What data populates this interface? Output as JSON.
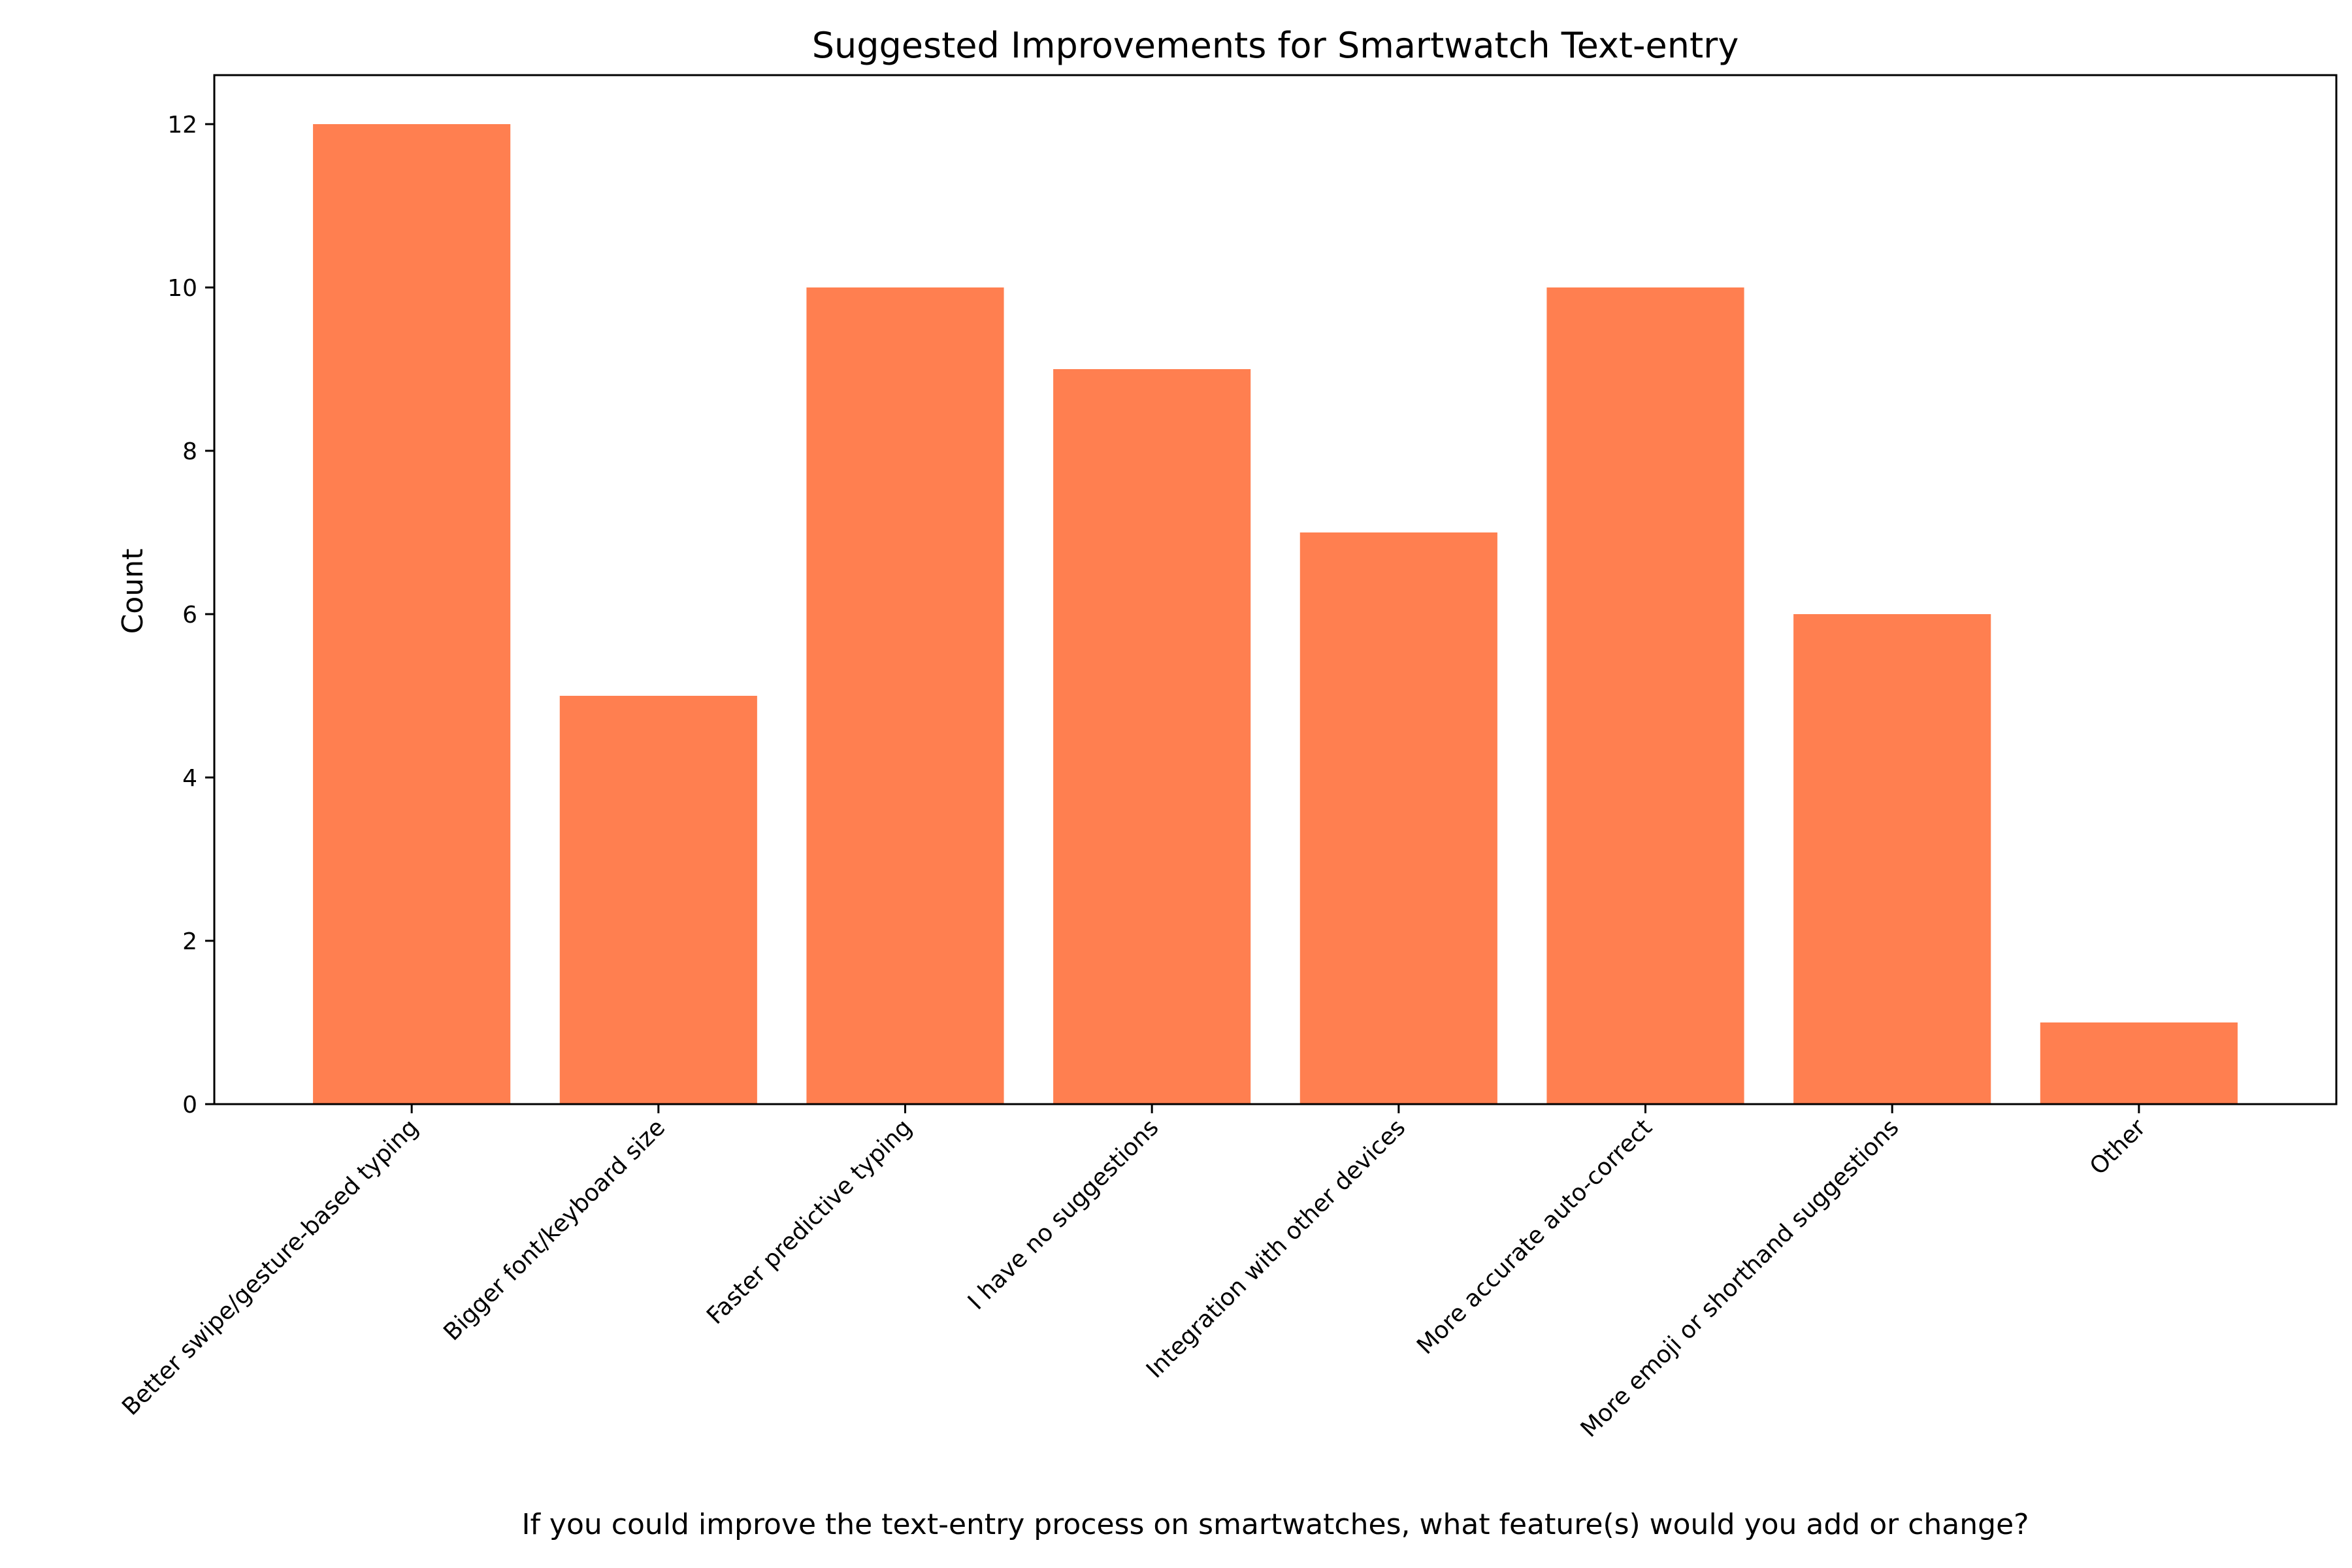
{
  "chart_data": {
    "type": "bar",
    "title": "Suggested Improvements for Smartwatch Text-entry",
    "xlabel": "If you could improve the text-entry process on smartwatches, what feature(s) would you add or change?",
    "ylabel": "Count",
    "categories": [
      "Better swipe/gesture-based typing",
      "Bigger font/keyboard size",
      "Faster predictive typing",
      "I have no suggestions",
      "Integration with other devices",
      "More accurate auto-correct",
      "More emoji or shorthand suggestions",
      "Other"
    ],
    "values": [
      12,
      5,
      10,
      9,
      7,
      10,
      6,
      1
    ],
    "yticks": [
      0,
      2,
      4,
      6,
      8,
      10,
      12
    ],
    "ylim": [
      0,
      12.6
    ],
    "bar_color": "#ff7f50",
    "grid": false
  }
}
